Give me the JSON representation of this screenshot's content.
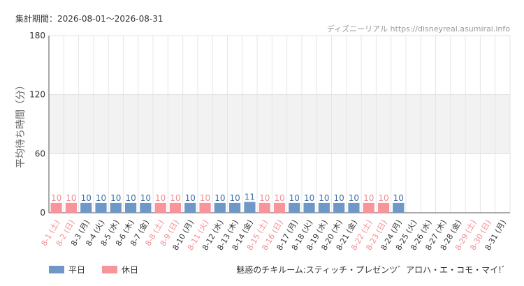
{
  "header": {
    "period": "集計期間：2026-08-01〜2026-08-31",
    "source": "ディズニーリアル https://disneyreal.asumirai.info"
  },
  "footer": {
    "attraction": "魅惑のチキルーム:スティッチ・プレゼンツ゛アロハ・エ・コモ・マイ!゛"
  },
  "legend": [
    {
      "label": "平日",
      "color": "#6f98c6"
    },
    {
      "label": "休日",
      "color": "#f7959a"
    }
  ],
  "chart_data": {
    "type": "bar",
    "title": "",
    "ylabel": "平均待ち時間（分）",
    "ylim": [
      0,
      180
    ],
    "yticks": [
      0,
      60,
      120,
      180
    ],
    "grid": true,
    "legend_position": "bottom-left",
    "colors": {
      "weekday": "#6f98c6",
      "holiday": "#f7959a",
      "holiday_label": "#f38b91",
      "weekday_label": "#3d6fa8"
    },
    "categories": [
      "8-1 (土)",
      "8-2 (日)",
      "8-3 (月)",
      "8-4 (火)",
      "8-5 (水)",
      "8-6 (木)",
      "8-7 (金)",
      "8-8 (土)",
      "8-9 (日)",
      "8-10 (月)",
      "8-11 (火)",
      "8-12 (水)",
      "8-13 (木)",
      "8-14 (金)",
      "8-15 (土)",
      "8-16 (日)",
      "8-17 (月)",
      "8-18 (火)",
      "8-19 (水)",
      "8-20 (木)",
      "8-21 (金)",
      "8-22 (土)",
      "8-23 (日)",
      "8-24 (月)",
      "8-25 (火)",
      "8-26 (水)",
      "8-27 (木)",
      "8-28 (金)",
      "8-29 (土)",
      "8-30 (日)",
      "8-31 (月)"
    ],
    "day_type": [
      "休日",
      "休日",
      "平日",
      "平日",
      "平日",
      "平日",
      "平日",
      "休日",
      "休日",
      "平日",
      "休日",
      "平日",
      "平日",
      "平日",
      "休日",
      "休日",
      "平日",
      "平日",
      "平日",
      "平日",
      "平日",
      "休日",
      "休日",
      "平日",
      "平日",
      "平日",
      "平日",
      "平日",
      "休日",
      "休日",
      "平日"
    ],
    "values": [
      10,
      10,
      10,
      10,
      10,
      10,
      10,
      10,
      10,
      10,
      10,
      10,
      10,
      11,
      10,
      10,
      10,
      10,
      10,
      10,
      10,
      10,
      10,
      10,
      null,
      null,
      null,
      null,
      null,
      null,
      null
    ]
  }
}
